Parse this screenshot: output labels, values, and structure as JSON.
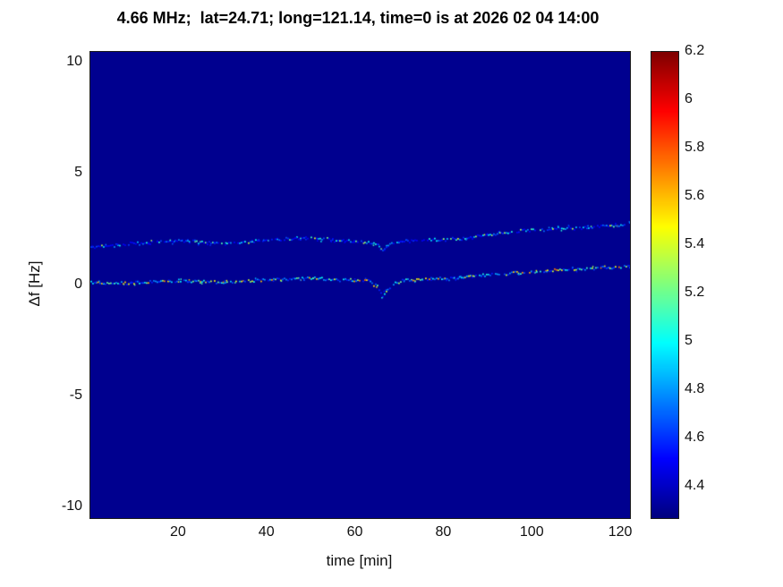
{
  "chart_data": {
    "type": "heatmap",
    "title": "4.66 MHz;  lat=24.71; long=121.14, time=0 is at 2026 02 04 14:00",
    "xlabel": "time [min]",
    "ylabel": "Δf [Hz]",
    "xlim": [
      0,
      122
    ],
    "ylim": [
      -10.5,
      10.5
    ],
    "x_ticks": [
      20,
      40,
      60,
      80,
      100,
      120
    ],
    "y_ticks": [
      10,
      5,
      0,
      -5,
      -10
    ],
    "colormap": "jet",
    "clim": [
      4.27,
      6.2
    ],
    "colorbar_ticks": [
      6.2,
      6,
      5.8,
      5.6,
      5.4,
      5.2,
      5,
      4.8,
      4.6,
      4.4
    ],
    "background_value": 4.3,
    "legend": "none",
    "grid": false,
    "traces": [
      {
        "name": "upper-doppler-trace",
        "x": [
          0,
          5,
          10,
          15,
          20,
          25,
          30,
          35,
          40,
          45,
          50,
          55,
          60,
          63,
          65,
          66,
          68,
          70,
          75,
          80,
          85,
          90,
          95,
          100,
          105,
          110,
          115,
          120,
          122
        ],
        "y": [
          1.75,
          1.8,
          1.9,
          1.95,
          2.0,
          1.95,
          1.9,
          1.95,
          2.05,
          2.1,
          2.15,
          2.05,
          2.0,
          1.95,
          1.8,
          1.6,
          1.9,
          2.0,
          2.05,
          2.05,
          2.15,
          2.3,
          2.4,
          2.5,
          2.55,
          2.6,
          2.65,
          2.75,
          2.8
        ],
        "value_range": [
          4.5,
          5.45
        ],
        "skew": 3.0
      },
      {
        "name": "lower-doppler-trace",
        "x": [
          0,
          5,
          10,
          15,
          20,
          25,
          30,
          35,
          40,
          45,
          50,
          55,
          60,
          63,
          65,
          66,
          68,
          70,
          75,
          80,
          85,
          90,
          95,
          100,
          105,
          110,
          115,
          120,
          122
        ],
        "y": [
          0.15,
          0.1,
          0.12,
          0.2,
          0.22,
          0.18,
          0.15,
          0.2,
          0.28,
          0.3,
          0.32,
          0.28,
          0.25,
          0.2,
          -0.1,
          -0.45,
          0.0,
          0.2,
          0.3,
          0.3,
          0.4,
          0.5,
          0.55,
          0.6,
          0.7,
          0.75,
          0.8,
          0.85,
          0.85
        ],
        "value_range": [
          4.55,
          5.75
        ],
        "skew": 2.0
      }
    ]
  }
}
